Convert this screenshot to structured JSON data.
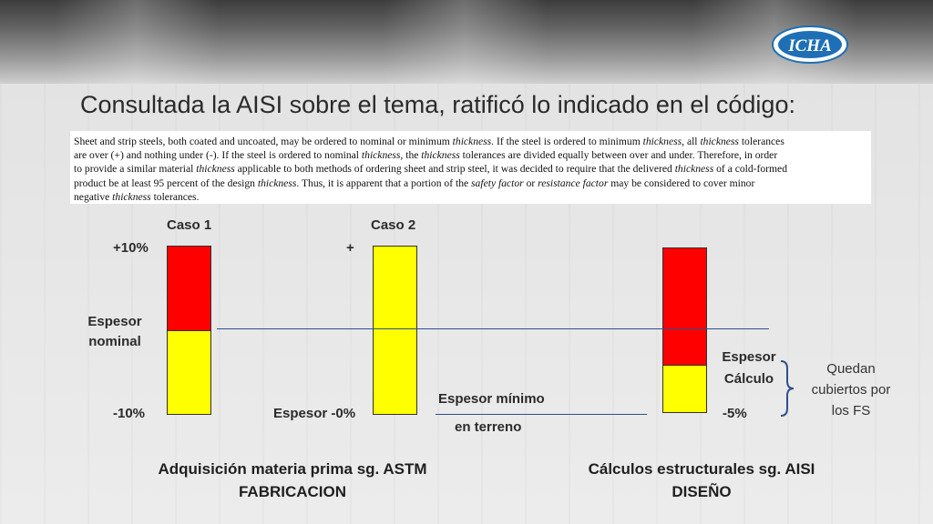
{
  "slide": {
    "title": "Consultada la AISI sobre el tema, ratificó lo indicado en el código:",
    "logo_text": "ICHA",
    "quote_lines": [
      "Sheet and strip steels, both coated and uncoated, may be ordered to nominal or minimum <i>thickness</i>. If the steel is ordered to minimum <i>thickness</i>, all <i>thickness</i> tolerances",
      "are over (+) and nothing under (-). If the steel is ordered to nominal <i>thickness</i>, the <i>thickness</i> tolerances are divided equally between over and under. Therefore, in order",
      "to provide a similar material <i>thickness</i> applicable to both methods of ordering sheet and strip steel, it was decided to require that the delivered <i>thickness</i> of a cold-formed",
      "product be at least 95 percent of the design <i>thickness</i>. Thus, it is apparent that a portion of the <i>safety factor</i> or <i>resistance factor</i> may be considered to cover minor",
      "negative <i>thickness</i> tolerances."
    ]
  },
  "diagram": {
    "caso1": {
      "title": "Caso 1",
      "top": "+10%",
      "bottom": "-10%",
      "red_fraction": 0.5
    },
    "caso2": {
      "title": "Caso 2",
      "top": "+",
      "bottom": "Espesor -0%",
      "red_fraction": 0
    },
    "diseno": {
      "red_fraction": 0.71,
      "label_line1": "Espesor",
      "label_line2": "Cálculo",
      "bottom": "-5%"
    },
    "espesor_nominal_line1": "Espesor",
    "espesor_nominal_line2": "nominal",
    "espesor_minimo_line1": "Espesor mínimo",
    "espesor_minimo_line2": "en terreno",
    "note_lines": [
      "Quedan",
      "cubiertos por",
      "los FS"
    ],
    "footer_left_line1": "Adquisición materia prima sg. ASTM",
    "footer_left_line2": "FABRICACION",
    "footer_right_line1": "Cálculos estructurales sg. AISI",
    "footer_right_line2": "DISEÑO"
  },
  "colors": {
    "red": "#ff0000",
    "yellow": "#ffff00",
    "line": "#2f4f8a",
    "logo_blue": "#1e6fb5"
  }
}
